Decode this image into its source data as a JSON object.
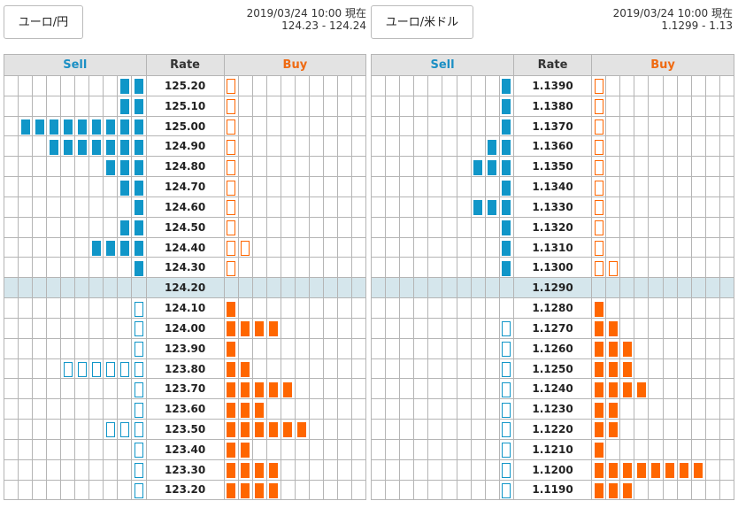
{
  "panels": [
    {
      "pair_label": "ユーロ/円",
      "timestamp": "2019/03/24 10:00 現在",
      "quote": "124.23 - 124.24",
      "headers": {
        "sell": "Sell",
        "rate": "Rate",
        "buy": "Buy"
      },
      "rows": [
        {
          "rate": "125.20",
          "sell": 2,
          "sell_style": "filled",
          "buy": 1,
          "buy_style": "outline"
        },
        {
          "rate": "125.10",
          "sell": 2,
          "sell_style": "filled",
          "buy": 1,
          "buy_style": "outline"
        },
        {
          "rate": "125.00",
          "sell": 9,
          "sell_style": "filled",
          "buy": 1,
          "buy_style": "outline"
        },
        {
          "rate": "124.90",
          "sell": 7,
          "sell_style": "filled",
          "buy": 1,
          "buy_style": "outline"
        },
        {
          "rate": "124.80",
          "sell": 3,
          "sell_style": "filled",
          "buy": 1,
          "buy_style": "outline"
        },
        {
          "rate": "124.70",
          "sell": 2,
          "sell_style": "filled",
          "buy": 1,
          "buy_style": "outline"
        },
        {
          "rate": "124.60",
          "sell": 1,
          "sell_style": "filled",
          "buy": 1,
          "buy_style": "outline"
        },
        {
          "rate": "124.50",
          "sell": 2,
          "sell_style": "filled",
          "buy": 1,
          "buy_style": "outline"
        },
        {
          "rate": "124.40",
          "sell": 4,
          "sell_style": "filled",
          "buy": 2,
          "buy_style": "outline"
        },
        {
          "rate": "124.30",
          "sell": 1,
          "sell_style": "filled",
          "buy": 1,
          "buy_style": "outline"
        },
        {
          "rate": "124.20",
          "sell": 0,
          "sell_style": "filled",
          "buy": 0,
          "buy_style": "filled",
          "current": true
        },
        {
          "rate": "124.10",
          "sell": 1,
          "sell_style": "outline",
          "buy": 1,
          "buy_style": "filled"
        },
        {
          "rate": "124.00",
          "sell": 1,
          "sell_style": "outline",
          "buy": 4,
          "buy_style": "filled"
        },
        {
          "rate": "123.90",
          "sell": 1,
          "sell_style": "outline",
          "buy": 1,
          "buy_style": "filled"
        },
        {
          "rate": "123.80",
          "sell": 6,
          "sell_style": "outline",
          "buy": 2,
          "buy_style": "filled"
        },
        {
          "rate": "123.70",
          "sell": 1,
          "sell_style": "outline",
          "buy": 5,
          "buy_style": "filled"
        },
        {
          "rate": "123.60",
          "sell": 1,
          "sell_style": "outline",
          "buy": 3,
          "buy_style": "filled"
        },
        {
          "rate": "123.50",
          "sell": 3,
          "sell_style": "outline",
          "buy": 6,
          "buy_style": "filled"
        },
        {
          "rate": "123.40",
          "sell": 1,
          "sell_style": "outline",
          "buy": 2,
          "buy_style": "filled"
        },
        {
          "rate": "123.30",
          "sell": 1,
          "sell_style": "outline",
          "buy": 4,
          "buy_style": "filled"
        },
        {
          "rate": "123.20",
          "sell": 1,
          "sell_style": "outline",
          "buy": 4,
          "buy_style": "filled"
        }
      ]
    },
    {
      "pair_label": "ユーロ/米ドル",
      "timestamp": "2019/03/24 10:00 現在",
      "quote": "1.1299 - 1.13",
      "headers": {
        "sell": "Sell",
        "rate": "Rate",
        "buy": "Buy"
      },
      "rows": [
        {
          "rate": "1.1390",
          "sell": 1,
          "sell_style": "filled",
          "buy": 1,
          "buy_style": "outline"
        },
        {
          "rate": "1.1380",
          "sell": 1,
          "sell_style": "filled",
          "buy": 1,
          "buy_style": "outline"
        },
        {
          "rate": "1.1370",
          "sell": 1,
          "sell_style": "filled",
          "buy": 1,
          "buy_style": "outline"
        },
        {
          "rate": "1.1360",
          "sell": 2,
          "sell_style": "filled",
          "buy": 1,
          "buy_style": "outline"
        },
        {
          "rate": "1.1350",
          "sell": 3,
          "sell_style": "filled",
          "buy": 1,
          "buy_style": "outline"
        },
        {
          "rate": "1.1340",
          "sell": 1,
          "sell_style": "filled",
          "buy": 1,
          "buy_style": "outline"
        },
        {
          "rate": "1.1330",
          "sell": 3,
          "sell_style": "filled",
          "buy": 1,
          "buy_style": "outline"
        },
        {
          "rate": "1.1320",
          "sell": 1,
          "sell_style": "filled",
          "buy": 1,
          "buy_style": "outline"
        },
        {
          "rate": "1.1310",
          "sell": 1,
          "sell_style": "filled",
          "buy": 1,
          "buy_style": "outline"
        },
        {
          "rate": "1.1300",
          "sell": 1,
          "sell_style": "filled",
          "buy": 2,
          "buy_style": "outline"
        },
        {
          "rate": "1.1290",
          "sell": 0,
          "sell_style": "filled",
          "buy": 0,
          "buy_style": "filled",
          "current": true
        },
        {
          "rate": "1.1280",
          "sell": 0,
          "sell_style": "outline",
          "buy": 1,
          "buy_style": "filled"
        },
        {
          "rate": "1.1270",
          "sell": 1,
          "sell_style": "outline",
          "buy": 2,
          "buy_style": "filled"
        },
        {
          "rate": "1.1260",
          "sell": 1,
          "sell_style": "outline",
          "buy": 3,
          "buy_style": "filled"
        },
        {
          "rate": "1.1250",
          "sell": 1,
          "sell_style": "outline",
          "buy": 3,
          "buy_style": "filled"
        },
        {
          "rate": "1.1240",
          "sell": 1,
          "sell_style": "outline",
          "buy": 4,
          "buy_style": "filled"
        },
        {
          "rate": "1.1230",
          "sell": 1,
          "sell_style": "outline",
          "buy": 2,
          "buy_style": "filled"
        },
        {
          "rate": "1.1220",
          "sell": 1,
          "sell_style": "outline",
          "buy": 2,
          "buy_style": "filled"
        },
        {
          "rate": "1.1210",
          "sell": 1,
          "sell_style": "outline",
          "buy": 1,
          "buy_style": "filled"
        },
        {
          "rate": "1.1200",
          "sell": 1,
          "sell_style": "outline",
          "buy": 8,
          "buy_style": "filled"
        },
        {
          "rate": "1.1190",
          "sell": 1,
          "sell_style": "outline",
          "buy": 3,
          "buy_style": "filled"
        }
      ]
    }
  ],
  "colors": {
    "sell": "#1096c8",
    "buy": "#ff6600",
    "current_row": "#d5e6ec",
    "header": "#e3e3e3"
  }
}
